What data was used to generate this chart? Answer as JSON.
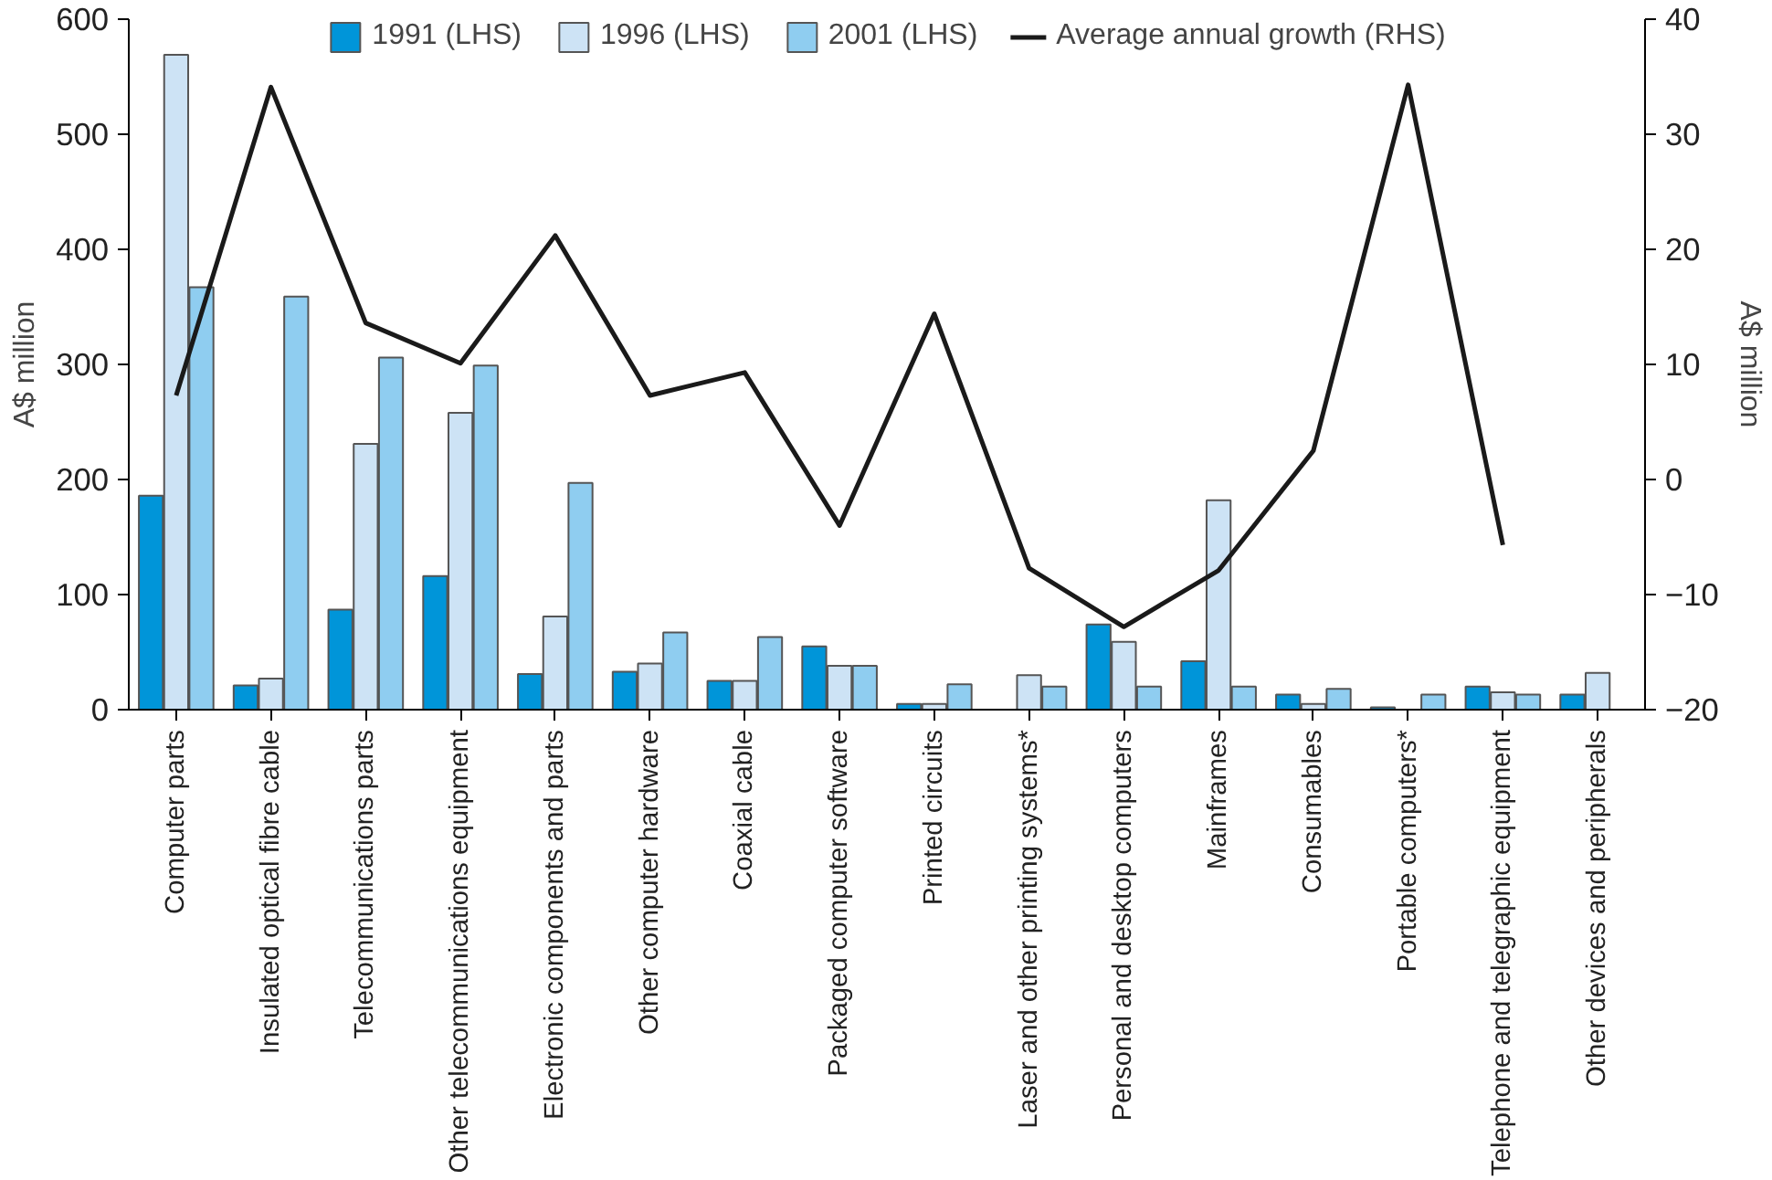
{
  "chart_data": {
    "type": "bar",
    "ylabel": "A$ million",
    "y2label": "A$ million",
    "categories": [
      "Computer parts",
      "Insulated optical fibre cable",
      "Telecommunications parts",
      "Other telecommunications equipment",
      "Electronic components and parts",
      "Other computer hardware",
      "Coaxial cable",
      "Packaged computer software",
      "Printed circuits",
      "Laser and other printing systems*",
      "Personal and desktop computers",
      "Mainframes",
      "Consumables",
      "Portable computers*",
      "Telephone and telegraphic equipment",
      "Other devices and peripherals"
    ],
    "series": [
      {
        "name": "1991 (LHS)",
        "color": "#0095d9",
        "values": [
          186,
          21,
          87,
          116,
          31,
          33,
          25,
          55,
          5,
          null,
          74,
          42,
          13,
          2,
          20,
          13
        ]
      },
      {
        "name": "1996 (LHS)",
        "color": "#cde3f5",
        "values": [
          569,
          27,
          231,
          258,
          81,
          40,
          25,
          38,
          5,
          30,
          59,
          182,
          5,
          null,
          15,
          32
        ]
      },
      {
        "name": "2001 (LHS)",
        "color": "#8fcdf0",
        "values": [
          367,
          359,
          306,
          299,
          197,
          67,
          63,
          38,
          22,
          20,
          20,
          20,
          18,
          13,
          13,
          null
        ]
      },
      {
        "name": "Average annual growth (RHS)",
        "type": "line",
        "axis": "y2",
        "color": "#1a1a1a",
        "values": [
          7.3,
          34.1,
          13.6,
          10.1,
          21.2,
          7.3,
          9.3,
          -4,
          14.4,
          -7.7,
          -12.8,
          -7.9,
          2.5,
          34.3,
          -5.7,
          null
        ]
      }
    ],
    "ylim": [
      0,
      600
    ],
    "yticks": [
      0,
      100,
      200,
      300,
      400,
      500,
      600
    ],
    "y2lim": [
      -20,
      40
    ],
    "y2ticks": [
      -20,
      -10,
      0,
      10,
      20,
      30,
      40
    ],
    "grid": false,
    "legend": "top"
  }
}
